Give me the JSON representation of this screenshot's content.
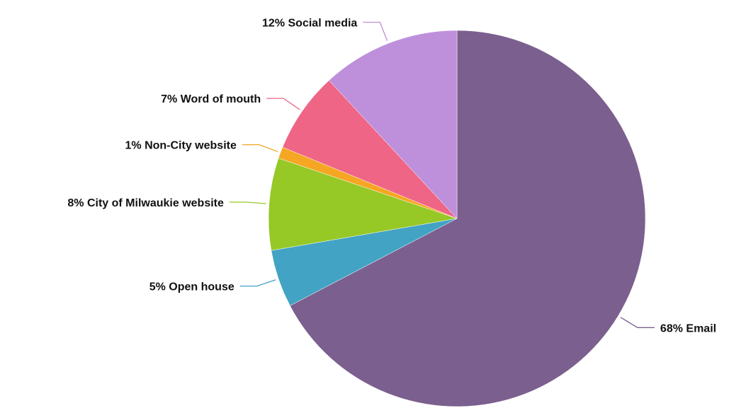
{
  "chart_data": {
    "type": "pie",
    "title": "",
    "legend": "none",
    "slices": [
      {
        "name": "Email",
        "value": 68,
        "label": "68% Email",
        "color": "#7b5f8e"
      },
      {
        "name": "Open house",
        "value": 5,
        "label": "5% Open house",
        "color": "#42a3c4"
      },
      {
        "name": "City of Milwaukie website",
        "value": 8,
        "label": "8% City of Milwaukie website",
        "color": "#96c826"
      },
      {
        "name": "Non-City website",
        "value": 1,
        "label": "1% Non-City website",
        "color": "#f5a623"
      },
      {
        "name": "Word of mouth",
        "value": 7,
        "label": "7% Word of mouth",
        "color": "#ef6586"
      },
      {
        "name": "Social media",
        "value": 12,
        "label": "12% Social media",
        "color": "#be8fdb"
      }
    ]
  }
}
